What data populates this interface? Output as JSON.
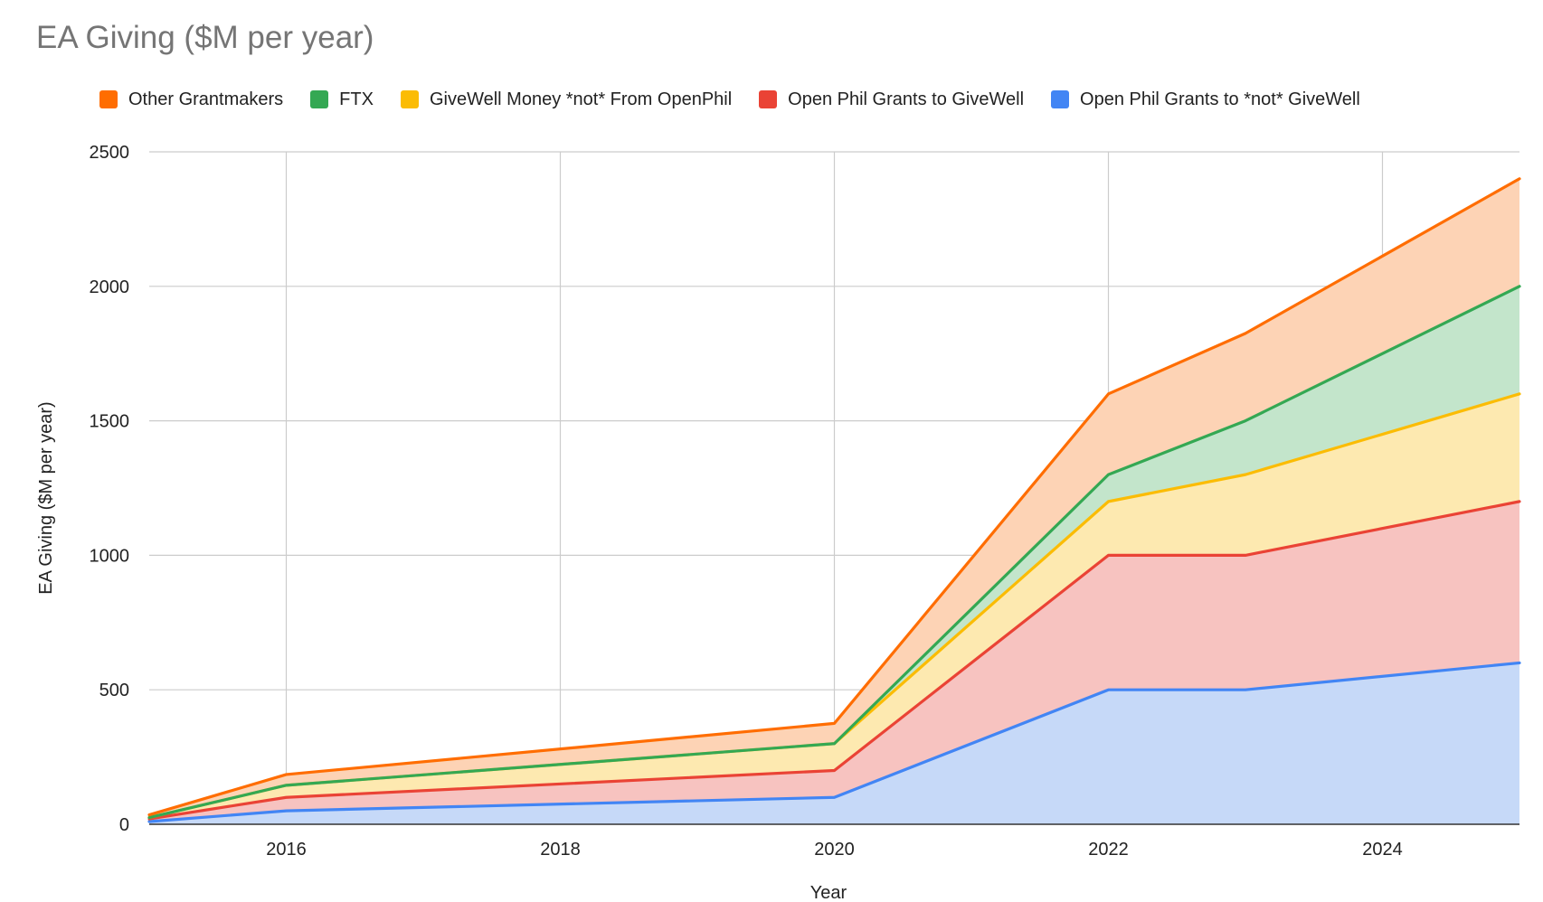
{
  "chart_data": {
    "type": "area",
    "stacked": true,
    "title": "EA Giving ($M per year)",
    "xlabel": "Year",
    "ylabel": "EA Giving ($M per year)",
    "xlim": [
      2015,
      2025
    ],
    "ylim": [
      0,
      2500
    ],
    "x": [
      2015,
      2016,
      2020,
      2022,
      2023,
      2025
    ],
    "xticks": [
      "2016",
      "2018",
      "2020",
      "2022",
      "2024"
    ],
    "xtick_values": [
      2016,
      2018,
      2020,
      2022,
      2024
    ],
    "yticks": [
      "0",
      "500",
      "1000",
      "1500",
      "2000",
      "2500"
    ],
    "ytick_values": [
      0,
      500,
      1000,
      1500,
      2000,
      2500
    ],
    "grid": true,
    "legend_position": "top",
    "series": [
      {
        "name": "Open Phil Grants to *not* GiveWell",
        "color": "#4285f4",
        "fill": "#c6d9f8",
        "values": [
          10,
          50,
          100,
          500,
          500,
          600
        ]
      },
      {
        "name": "Open Phil Grants to GiveWell",
        "color": "#ea4335",
        "fill": "#f7c3c0",
        "values": [
          10,
          50,
          100,
          500,
          500,
          600
        ]
      },
      {
        "name": "GiveWell Money *not* From OpenPhil",
        "color": "#fbbc04",
        "fill": "#fde9b0",
        "values": [
          5,
          45,
          100,
          200,
          300,
          400
        ]
      },
      {
        "name": "FTX",
        "color": "#34a853",
        "fill": "#c3e5cb",
        "values": [
          0,
          0,
          0,
          100,
          200,
          400
        ]
      },
      {
        "name": "Other Grantmakers",
        "color": "#ff6d01",
        "fill": "#fdd3b5",
        "values": [
          10,
          40,
          75,
          300,
          325,
          400
        ]
      }
    ],
    "legend_order": [
      "Other Grantmakers",
      "FTX",
      "GiveWell Money *not* From OpenPhil",
      "Open Phil Grants to GiveWell",
      "Open Phil Grants to *not* GiveWell"
    ]
  }
}
